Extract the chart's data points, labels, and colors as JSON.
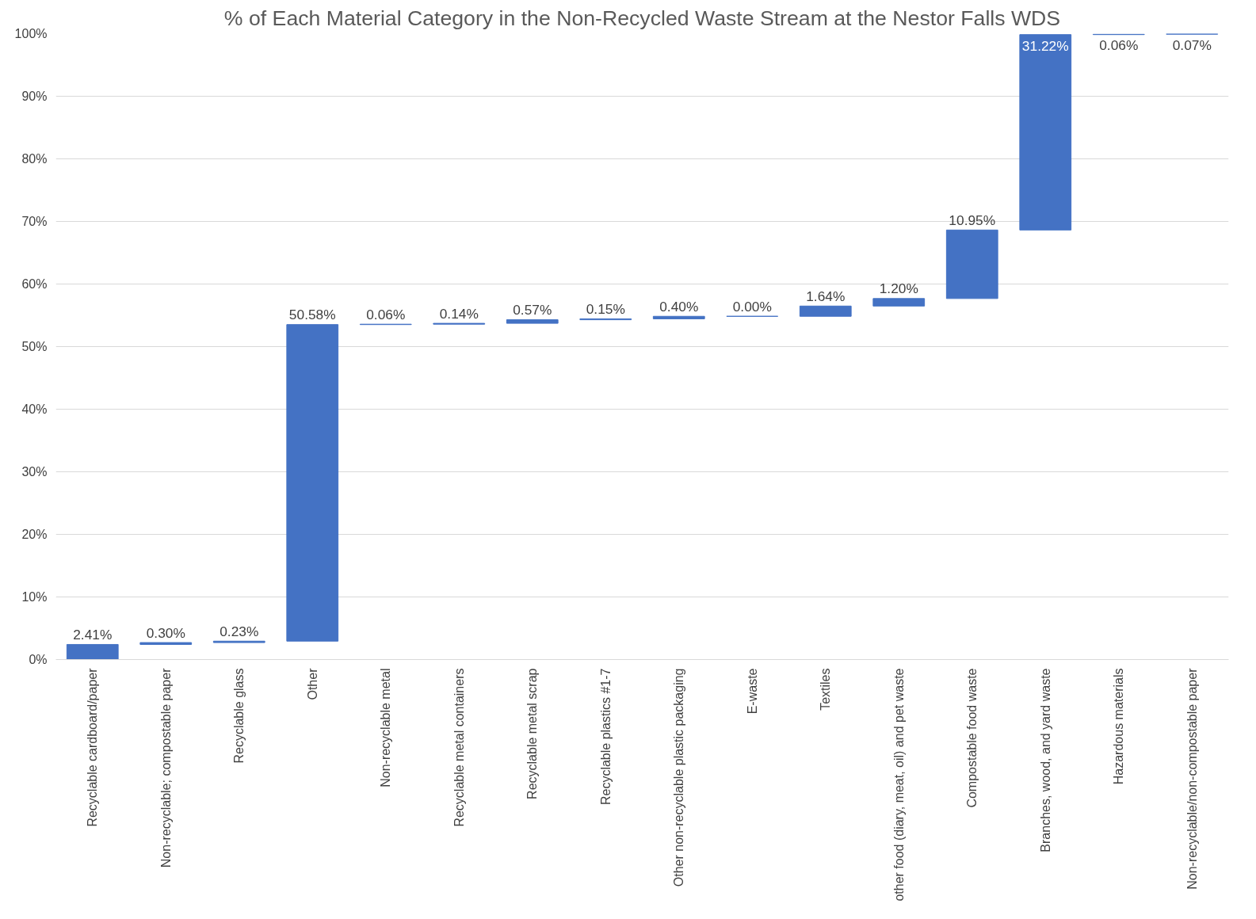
{
  "chart_data": {
    "type": "bar",
    "title": "% of Each Material Category in the Non-Recycled Waste Stream at the Nestor Falls WDS",
    "categories": [
      "Recyclable cardboard/paper",
      "Non-recyclable; compostable paper",
      "Recyclable glass",
      "Other",
      "Non-recyclable metal",
      "Recyclable metal containers",
      "Recyclable metal scrap",
      "Recyclable plastics #1-7",
      "Other non-recyclable plastic packaging",
      "E-waste",
      "Textiles",
      "other food (diary, meat, oil) and pet waste",
      "Compostable food waste",
      "Branches, wood, and yard waste",
      "Hazardous materials",
      "Non-recyclable/non-compostable paper"
    ],
    "values": [
      2.41,
      0.3,
      0.23,
      50.58,
      0.06,
      0.14,
      0.57,
      0.15,
      0.4,
      0.0,
      1.64,
      1.2,
      10.95,
      31.22,
      0.06,
      0.07
    ],
    "base": [
      0,
      2.41,
      2.71,
      2.94,
      53.52,
      53.58,
      53.72,
      54.29,
      54.44,
      54.84,
      54.84,
      56.48,
      57.68,
      68.63,
      99.85,
      99.91
    ],
    "value_labels": [
      "2.41%",
      "0.30%",
      "0.23%",
      "50.58%",
      "0.06%",
      "0.14%",
      "0.57%",
      "0.15%",
      "0.40%",
      "0.00%",
      "1.64%",
      "1.20%",
      "10.95%",
      "31.22%",
      "0.06%",
      "0.07%"
    ],
    "color": "#4472c4",
    "ylim": [
      0,
      100
    ],
    "yticks": [
      {
        "value": 0,
        "label": "0%"
      },
      {
        "value": 10,
        "label": "10%"
      },
      {
        "value": 20,
        "label": "20%"
      },
      {
        "value": 30,
        "label": "30%"
      },
      {
        "value": 40,
        "label": "40%"
      },
      {
        "value": 50,
        "label": "50%"
      },
      {
        "value": 60,
        "label": "60%"
      },
      {
        "value": 70,
        "label": "70%"
      },
      {
        "value": 80,
        "label": "80%"
      },
      {
        "value": 90,
        "label": "90%"
      },
      {
        "value": 100,
        "label": "100%"
      }
    ],
    "grid": "y"
  }
}
